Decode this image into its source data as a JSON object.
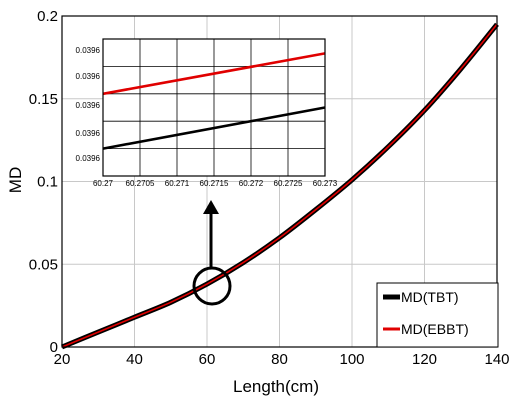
{
  "chart_data": {
    "type": "line",
    "title": "",
    "xlabel": "Length(cm)",
    "ylabel": "MD",
    "xlim": [
      20,
      140
    ],
    "ylim": [
      0,
      0.2
    ],
    "xticks": [
      "20",
      "40",
      "60",
      "80",
      "100",
      "120",
      "140"
    ],
    "yticks": [
      "0",
      "0.05",
      "0.1",
      "0.15",
      "0.2"
    ],
    "grid": true,
    "legend_position": "bottom-right",
    "series": [
      {
        "name": "MD(TBT)",
        "color": "#000000",
        "x": [
          20,
          30,
          40,
          50,
          60,
          70,
          80,
          90,
          100,
          110,
          120,
          130,
          140
        ],
        "y": [
          0,
          0.009,
          0.018,
          0.027,
          0.038,
          0.051,
          0.066,
          0.083,
          0.101,
          0.121,
          0.143,
          0.168,
          0.195
        ]
      },
      {
        "name": "MD(EBBT)",
        "color": "#e00000",
        "x": [
          20,
          30,
          40,
          50,
          60,
          70,
          80,
          90,
          100,
          110,
          120,
          130,
          140
        ],
        "y": [
          0,
          0.009,
          0.018,
          0.027,
          0.038,
          0.051,
          0.066,
          0.083,
          0.101,
          0.121,
          0.143,
          0.168,
          0.195
        ]
      }
    ],
    "inset": {
      "xlim": [
        60.27,
        60.273
      ],
      "xticks": [
        "60.27",
        "60.2705",
        "60.271",
        "60.2715",
        "60.272",
        "60.2725",
        "60.273"
      ],
      "yticks": [
        "0.0396",
        "0.0396",
        "0.0396",
        "0.0396",
        "0.0396",
        "0.0396"
      ],
      "series": [
        {
          "name": "MD(TBT)",
          "color": "#000000",
          "x": [
            60.27,
            60.273
          ],
          "y": [
            0.2,
            0.5
          ]
        },
        {
          "name": "MD(EBBT)",
          "color": "#e00000",
          "x": [
            60.27,
            60.273
          ],
          "y": [
            0.6,
            0.895
          ]
        }
      ]
    }
  }
}
